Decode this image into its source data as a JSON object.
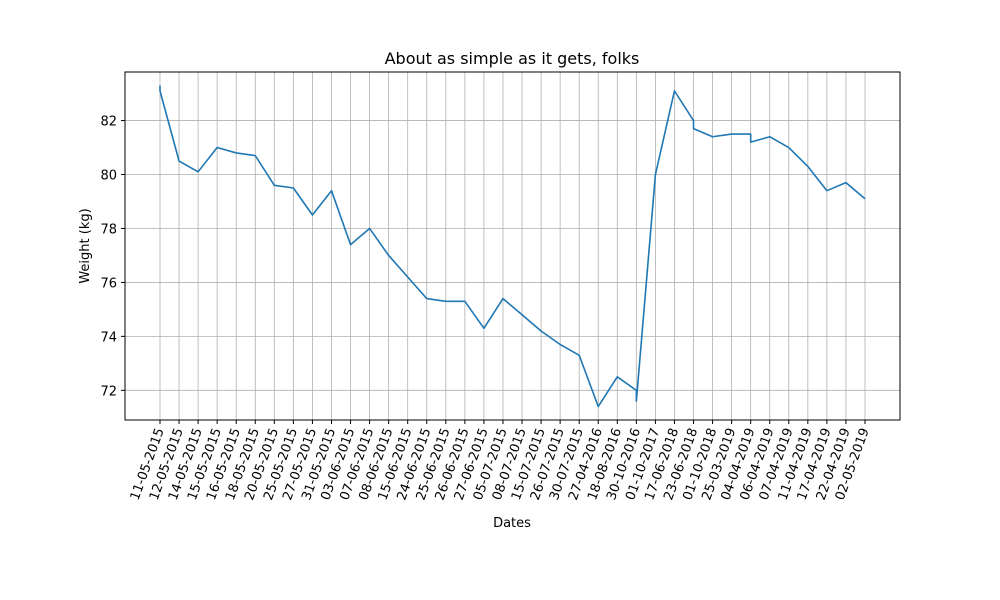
{
  "chart_data": {
    "type": "line",
    "title": "About as simple as it gets, folks",
    "xlabel": "Dates",
    "ylabel": "Weight (kg)",
    "ylim": [
      70.9,
      83.8
    ],
    "yticks": [
      72,
      74,
      76,
      78,
      80,
      82
    ],
    "grid": true,
    "line_color": "#1f77b4",
    "categories": [
      "11-05-2015",
      "12-05-2015",
      "14-05-2015",
      "15-05-2015",
      "16-05-2015",
      "18-05-2015",
      "20-05-2015",
      "25-05-2015",
      "27-05-2015",
      "31-05-2015",
      "03-06-2015",
      "07-06-2015",
      "08-06-2015",
      "15-06-2015",
      "24-06-2015",
      "25-06-2015",
      "26-06-2015",
      "27-06-2015",
      "05-07-2015",
      "08-07-2015",
      "15-07-2015",
      "26-07-2015",
      "30-07-2015",
      "27-04-2016",
      "18-08-2016",
      "30-10-2016",
      "01-10-2017",
      "17-06-2018",
      "23-06-2018",
      "01-10-2018",
      "25-03-2019",
      "04-04-2019",
      "06-04-2019",
      "07-04-2019",
      "11-04-2019",
      "17-04-2019",
      "22-04-2019",
      "02-05-2019"
    ],
    "points": [
      {
        "i": 0,
        "y": 83.3
      },
      {
        "i": 0,
        "y": 83.1
      },
      {
        "i": 1,
        "y": 80.5
      },
      {
        "i": 2,
        "y": 80.1
      },
      {
        "i": 3,
        "y": 81.0
      },
      {
        "i": 4,
        "y": 80.8
      },
      {
        "i": 5,
        "y": 80.7
      },
      {
        "i": 6,
        "y": 79.6
      },
      {
        "i": 7,
        "y": 79.5
      },
      {
        "i": 8,
        "y": 78.5
      },
      {
        "i": 9,
        "y": 79.4
      },
      {
        "i": 10,
        "y": 77.4
      },
      {
        "i": 11,
        "y": 78.0
      },
      {
        "i": 12,
        "y": 77.0
      },
      {
        "i": 13,
        "y": 76.2
      },
      {
        "i": 14,
        "y": 75.4
      },
      {
        "i": 15,
        "y": 75.3
      },
      {
        "i": 16,
        "y": 75.3
      },
      {
        "i": 17,
        "y": 74.3
      },
      {
        "i": 18,
        "y": 75.4
      },
      {
        "i": 19,
        "y": 74.8
      },
      {
        "i": 20,
        "y": 74.2
      },
      {
        "i": 21,
        "y": 73.7
      },
      {
        "i": 22,
        "y": 73.3
      },
      {
        "i": 23,
        "y": 71.4
      },
      {
        "i": 24,
        "y": 72.5
      },
      {
        "i": 25,
        "y": 72.0
      },
      {
        "i": 25,
        "y": 71.6
      },
      {
        "i": 26,
        "y": 80.0
      },
      {
        "i": 27,
        "y": 83.1
      },
      {
        "i": 28,
        "y": 82.0
      },
      {
        "i": 28,
        "y": 81.7
      },
      {
        "i": 29,
        "y": 81.4
      },
      {
        "i": 30,
        "y": 81.5
      },
      {
        "i": 31,
        "y": 81.5
      },
      {
        "i": 31,
        "y": 81.2
      },
      {
        "i": 32,
        "y": 81.4
      },
      {
        "i": 33,
        "y": 81.0
      },
      {
        "i": 34,
        "y": 80.3
      },
      {
        "i": 35,
        "y": 79.4
      },
      {
        "i": 36,
        "y": 79.7
      },
      {
        "i": 37,
        "y": 79.1
      }
    ]
  }
}
